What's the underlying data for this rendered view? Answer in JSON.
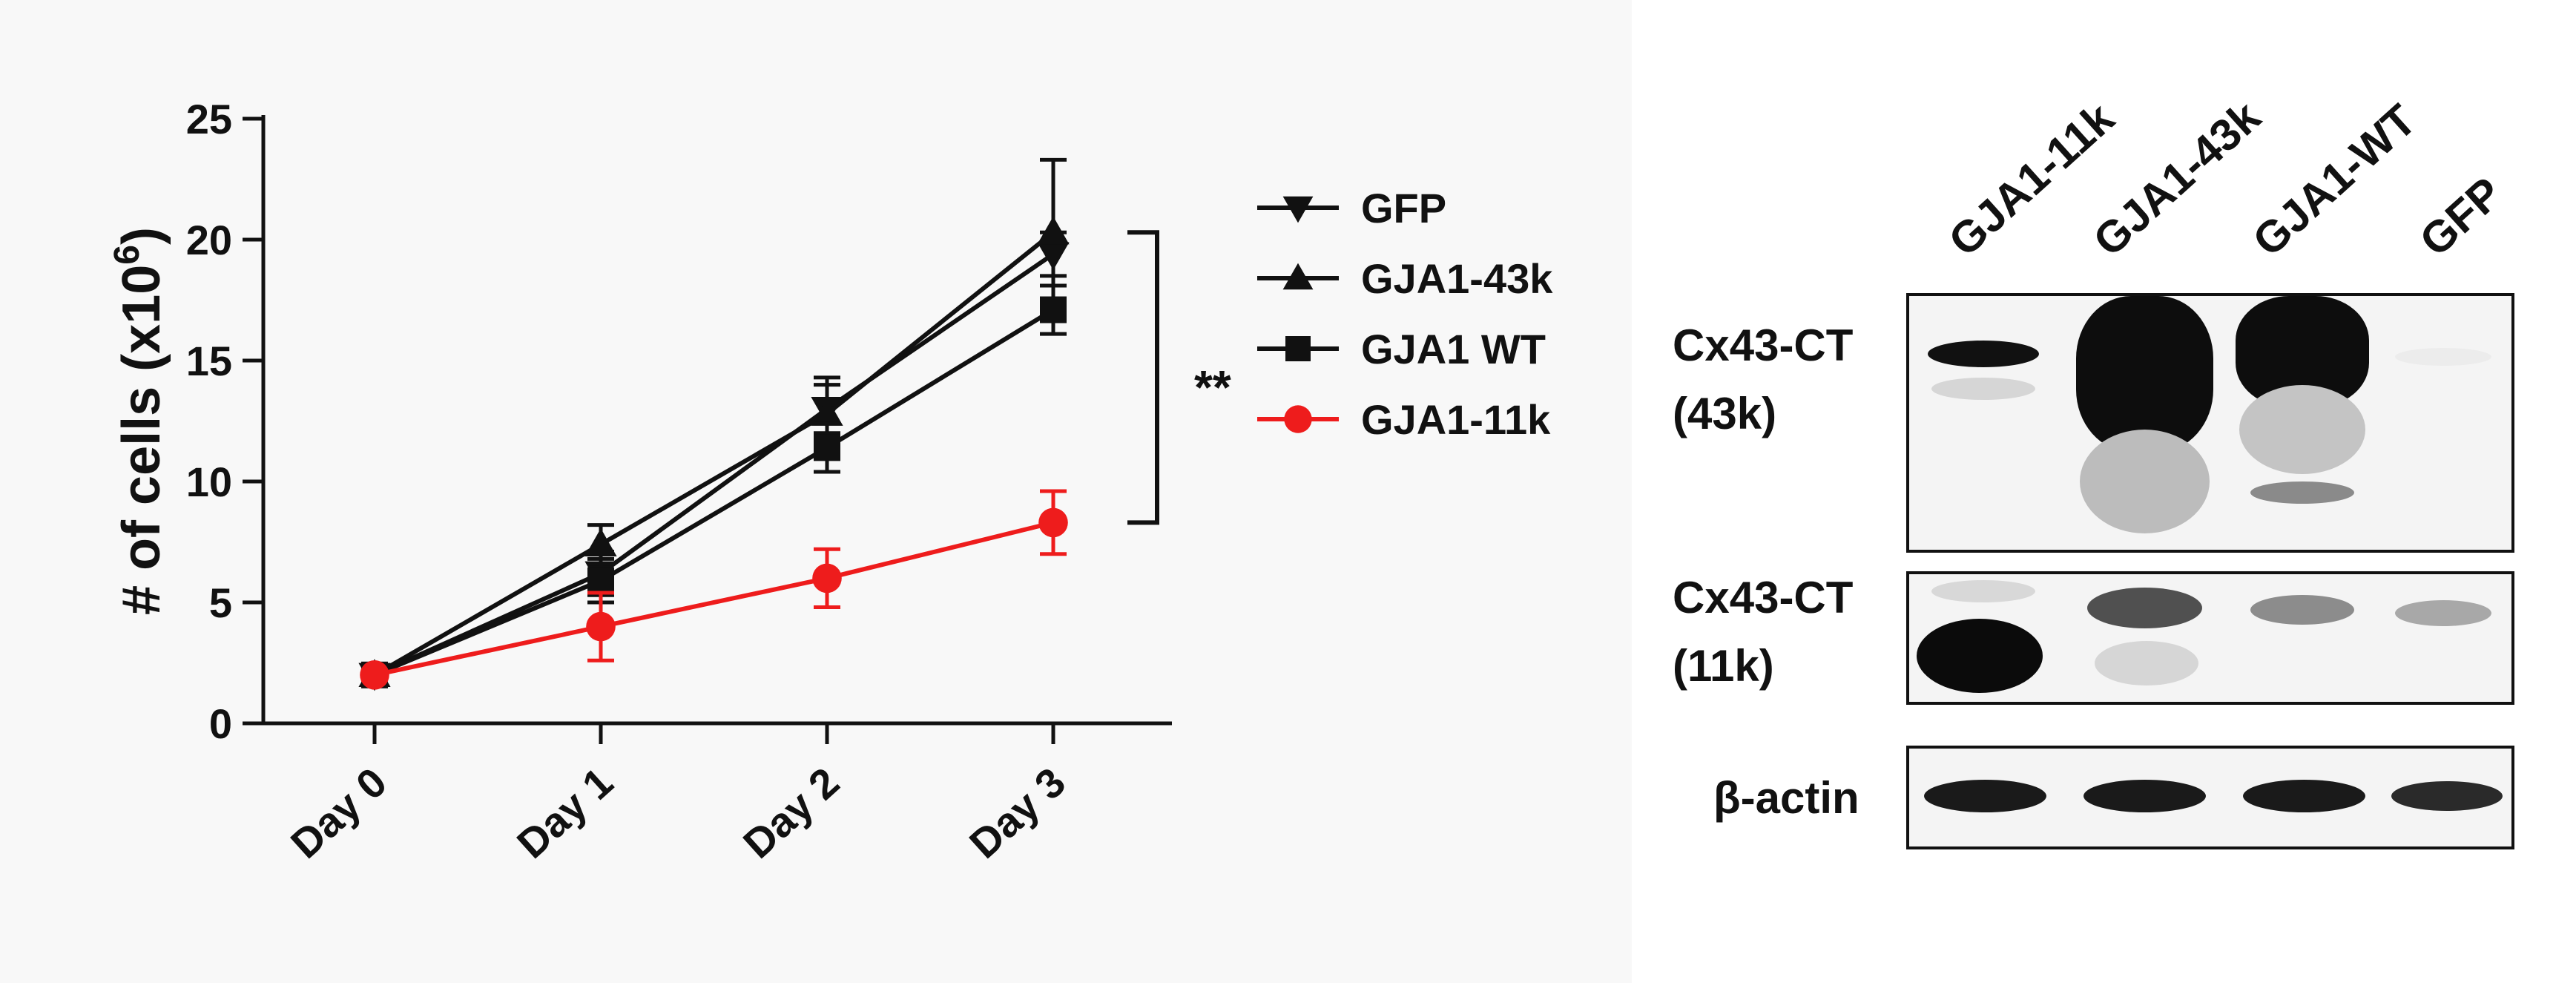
{
  "chart_data": {
    "type": "line",
    "ylabel_main": "# of cells (x10",
    "ylabel_sup": "6",
    "ylabel_close": ")",
    "xlabel": "",
    "categories": [
      "Day 0",
      "Day 1",
      "Day 2",
      "Day 3"
    ],
    "ylim": [
      0,
      25
    ],
    "yticks": [
      0,
      5,
      10,
      15,
      20,
      25
    ],
    "grid": false,
    "legend_position": "right",
    "series": [
      {
        "name": "GFP",
        "marker": "triangle-down",
        "color": "#111111",
        "values": [
          2.0,
          6.2,
          13.0,
          19.4
        ],
        "errors": [
          0.2,
          0.9,
          1.0,
          0.9
        ]
      },
      {
        "name": "GJA1-43k",
        "marker": "triangle-up",
        "color": "#111111",
        "values": [
          2.0,
          7.4,
          12.8,
          20.3
        ],
        "errors": [
          0.2,
          0.8,
          1.5,
          3.0
        ]
      },
      {
        "name": "GJA1 WT",
        "marker": "square",
        "color": "#111111",
        "values": [
          2.0,
          5.9,
          11.4,
          17.1
        ],
        "errors": [
          0.2,
          0.9,
          1.0,
          1.0
        ]
      },
      {
        "name": "GJA1-11k",
        "marker": "circle",
        "color": "#ee1c1c",
        "values": [
          2.0,
          4.0,
          6.0,
          8.3
        ],
        "errors": [
          0.2,
          1.4,
          1.2,
          1.3
        ]
      }
    ],
    "annotation": "**"
  },
  "blot": {
    "lanes": [
      "GJA1-11k",
      "GJA1-43k",
      "GJA1-WT",
      "GFP"
    ],
    "rows": [
      {
        "label_line1": "Cx43-CT",
        "label_line2": "(43k)"
      },
      {
        "label_line1": "Cx43-CT",
        "label_line2": "(11k)"
      },
      {
        "label_line1": "β-actin",
        "label_line2": ""
      }
    ]
  }
}
